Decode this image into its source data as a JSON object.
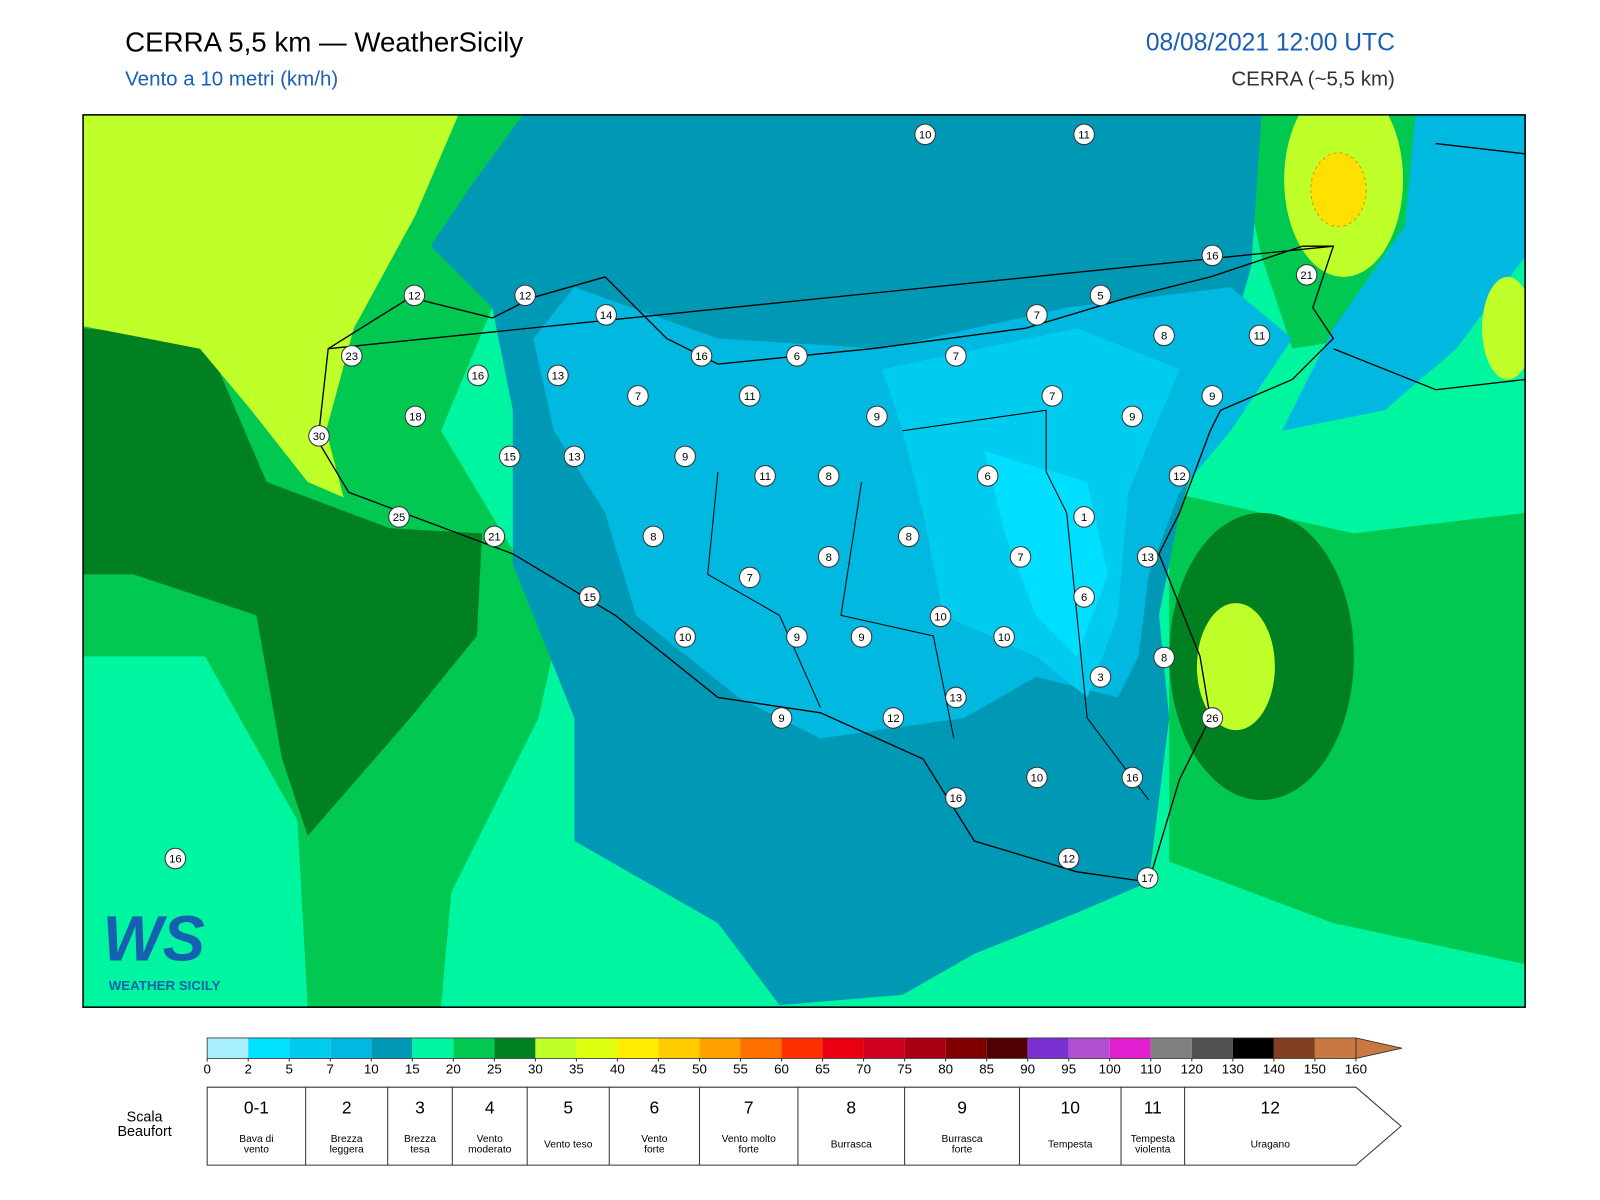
{
  "header": {
    "title": "CERRA 5,5 km — WeatherSicily",
    "subtitle": "Vento a 10 metri (km/h)",
    "date": "08/08/2021 12:00 UTC",
    "model": "CERRA (~5,5 km)"
  },
  "stations": [
    10,
    11,
    16,
    21,
    12,
    12,
    14,
    5,
    7,
    8,
    11,
    23,
    16,
    6,
    7,
    16,
    13,
    7,
    11,
    7,
    9,
    18,
    9,
    9,
    30,
    15,
    13,
    9,
    11,
    8,
    6,
    12,
    25,
    21,
    8,
    8,
    1,
    8,
    7,
    13,
    7,
    6,
    15,
    10,
    10,
    9,
    9,
    10,
    8,
    3,
    13,
    9,
    12,
    26,
    10,
    16,
    16,
    12,
    17,
    16
  ],
  "colorbar": {
    "ticks": [
      0,
      2,
      5,
      7,
      10,
      15,
      20,
      25,
      30,
      35,
      40,
      45,
      50,
      55,
      60,
      65,
      70,
      75,
      80,
      85,
      90,
      95,
      100,
      110,
      120,
      130,
      140,
      150,
      160
    ],
    "colors": [
      "#a8f0ff",
      "#00e0ff",
      "#00ccf0",
      "#00b8e0",
      "#0099b5",
      "#00f5a0",
      "#00c850",
      "#008020",
      "#bfff2a",
      "#dfff10",
      "#ffee00",
      "#ffcc00",
      "#ffa000",
      "#ff7000",
      "#ff3000",
      "#e80010",
      "#d00020",
      "#a80010",
      "#800000",
      "#500000",
      "#7a30d0",
      "#b050d0",
      "#e020d0",
      "#808080",
      "#505050",
      "#000000",
      "#804020",
      "#c87840"
    ]
  },
  "beaufort": {
    "title": [
      "Scala",
      "Beaufort"
    ],
    "levels": [
      {
        "force": "0-1",
        "desc": [
          "Bava di",
          "vento"
        ]
      },
      {
        "force": "2",
        "desc": [
          "Brezza",
          "leggera"
        ]
      },
      {
        "force": "3",
        "desc": [
          "Brezza",
          "tesa"
        ]
      },
      {
        "force": "4",
        "desc": [
          "Vento",
          "moderato"
        ]
      },
      {
        "force": "5",
        "desc": [
          "Vento teso"
        ]
      },
      {
        "force": "6",
        "desc": [
          "Vento",
          "forte"
        ]
      },
      {
        "force": "7",
        "desc": [
          "Vento molto",
          "forte"
        ]
      },
      {
        "force": "8",
        "desc": [
          "Burrasca"
        ]
      },
      {
        "force": "9",
        "desc": [
          "Burrasca",
          "forte"
        ]
      },
      {
        "force": "10",
        "desc": [
          "Tempesta"
        ]
      },
      {
        "force": "11",
        "desc": [
          "Tempesta",
          "violenta"
        ]
      },
      {
        "force": "12",
        "desc": [
          "Uragano"
        ]
      }
    ]
  },
  "logo": {
    "mark": "WS",
    "name": "WEATHER SICILY"
  }
}
